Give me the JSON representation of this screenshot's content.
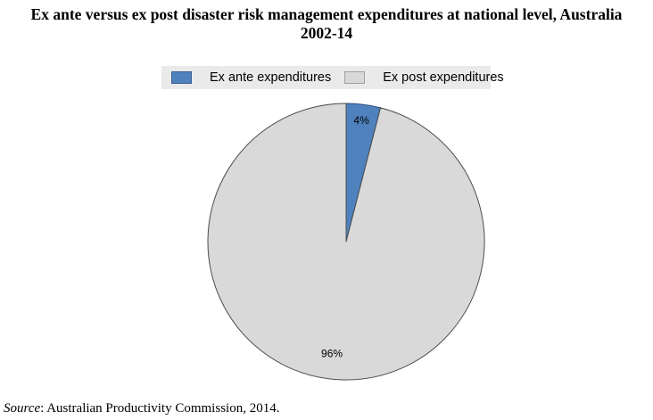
{
  "chart_data": {
    "type": "pie",
    "title_line1": "Ex ante versus ex post disaster risk management expenditures at national level, Australia",
    "title_line2": "2002-14",
    "categories": [
      "Ex ante expenditures",
      "Ex post expenditures"
    ],
    "values": [
      4,
      96
    ],
    "value_labels": [
      "4%",
      "96%"
    ],
    "colors": [
      "#4f81bd",
      "#d9d9d9"
    ],
    "legend_position": "top"
  },
  "source": {
    "prefix": "Source",
    "text": ": Australian Productivity Commission, 2014."
  }
}
